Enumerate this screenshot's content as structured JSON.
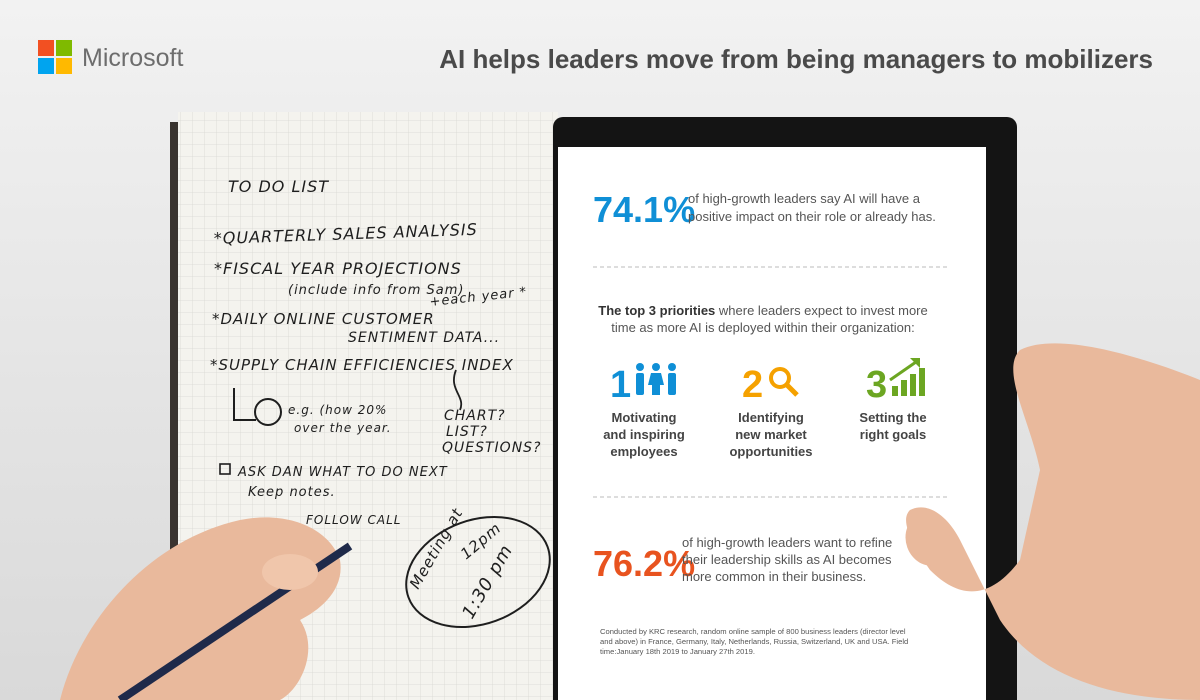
{
  "header": {
    "brand": "Microsoft",
    "title": "AI helps leaders move from being managers to mobilizers"
  },
  "notebook": {
    "lines": [
      "TO DO LIST",
      "*QUARTERLY SALES ANALYSIS",
      "*FISCAL YEAR PROJECTIONS",
      "(include info from Sam)",
      "+each year *",
      "*DAILY ONLINE CUSTOMER",
      "SENTIMENT DATA...",
      "*SUPPLY CHAIN EFFICIENCIES INDEX",
      "e.g. (how 20%",
      "over the year.",
      "CHART?",
      "LIST?",
      "QUESTIONS?",
      "ASK DAN WHAT TO DO NEXT",
      "Keep notes.",
      "FOLLOW CALL",
      "Meeting at",
      "12pm",
      "1:30 pm"
    ]
  },
  "stats": [
    {
      "value": "74.1%",
      "text_lines": [
        "of high-growth leaders say AI will have a",
        "positive impact on their role or already has."
      ]
    },
    {
      "value": "76.2%",
      "text_lines": [
        "of high-growth leaders want to refine",
        "their leadership skills as AI becomes",
        "more common in their business."
      ]
    }
  ],
  "priorities": {
    "intro_bold": "The top 3 priorities",
    "intro_lines": [
      "where leaders expect to invest more",
      "time as more AI is deployed within their organization:"
    ],
    "items": [
      {
        "number": "1",
        "label_lines": [
          "Motivating",
          "and inspiring",
          "employees"
        ]
      },
      {
        "number": "2",
        "label_lines": [
          "Identifying",
          "new market",
          "opportunities"
        ]
      },
      {
        "number": "3",
        "label_lines": [
          "Setting the",
          "right goals"
        ]
      }
    ]
  },
  "footnote": [
    "Conducted by KRC research, random online sample of 800 business leaders (director level",
    "and above) in France, Germany, Italy, Netherlands, Russia, Switzerland, UK and USA. Field",
    "time:January 18th 2019 to January 27th 2019."
  ]
}
